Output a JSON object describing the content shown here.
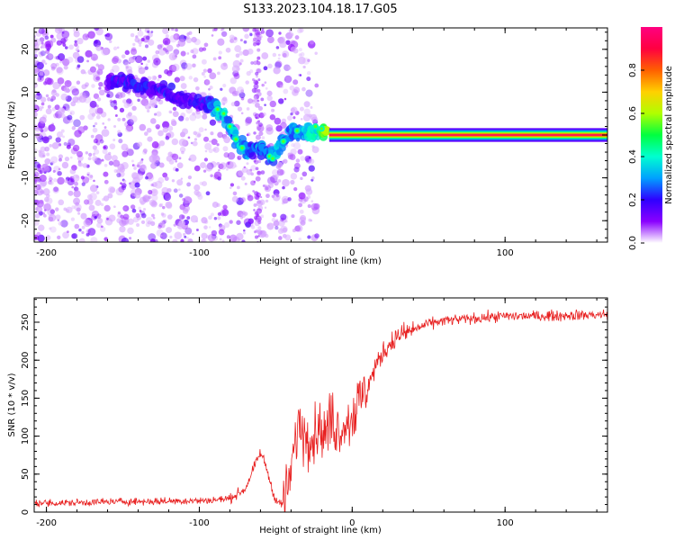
{
  "title": "S133.2023.104.18.17.G05",
  "chart_data": [
    {
      "type": "heatmap",
      "name": "spectrogram",
      "xlabel": "Height of straight line (km)",
      "ylabel": "Frequency (Hz)",
      "xlim": [
        -208,
        167
      ],
      "ylim": [
        -25,
        25
      ],
      "xticks": [
        -200,
        -100,
        0,
        100
      ],
      "xtick_labels": [
        "-200",
        "-100",
        "0",
        "100"
      ],
      "yticks": [
        -20,
        -10,
        0,
        10,
        20
      ],
      "ytick_labels": [
        "-20",
        "-10",
        "0",
        "10",
        "20"
      ],
      "colorbar": {
        "label": "Normalized spectral amplitude",
        "range": [
          0,
          1
        ],
        "ticks": [
          0.0,
          0.2,
          0.4,
          0.6,
          0.8
        ],
        "tick_labels": [
          "0.0",
          "0.2",
          "0.4",
          "0.6",
          "0.8"
        ],
        "colormap": [
          "#ffffff",
          "#8a00ff",
          "#2f00ff",
          "#00a0ff",
          "#00ffd0",
          "#00ff40",
          "#b0ff00",
          "#ffd000",
          "#ff6000",
          "#ff0040",
          "#ff0080"
        ]
      },
      "ridge": [
        {
          "x": -160,
          "y": 12,
          "amp": 0.15
        },
        {
          "x": -150,
          "y": 13,
          "amp": 0.18
        },
        {
          "x": -140,
          "y": 11,
          "amp": 0.2
        },
        {
          "x": -130,
          "y": 11,
          "amp": 0.18
        },
        {
          "x": -115,
          "y": 9,
          "amp": 0.15
        },
        {
          "x": -105,
          "y": 8,
          "amp": 0.16
        },
        {
          "x": -95,
          "y": 7,
          "amp": 0.2
        },
        {
          "x": -88,
          "y": 6,
          "amp": 0.35
        },
        {
          "x": -82,
          "y": 4,
          "amp": 0.3
        },
        {
          "x": -78,
          "y": 0,
          "amp": 0.3
        },
        {
          "x": -74,
          "y": -2,
          "amp": 0.35
        },
        {
          "x": -68,
          "y": -4,
          "amp": 0.25
        },
        {
          "x": -60,
          "y": -3,
          "amp": 0.25
        },
        {
          "x": -53,
          "y": -5,
          "amp": 0.3
        },
        {
          "x": -44,
          "y": -1,
          "amp": 0.3
        },
        {
          "x": -38,
          "y": 1,
          "amp": 0.3
        },
        {
          "x": -30,
          "y": 0,
          "amp": 0.35
        },
        {
          "x": -22,
          "y": 1,
          "amp": 0.4
        },
        {
          "x": -15,
          "y": 0,
          "amp": 0.7
        },
        {
          "x": 0,
          "y": 0,
          "amp": 0.95
        },
        {
          "x": 50,
          "y": 0,
          "amp": 0.97
        },
        {
          "x": 100,
          "y": 0,
          "amp": 0.98
        },
        {
          "x": 165,
          "y": 0,
          "amp": 0.98
        }
      ]
    },
    {
      "type": "line",
      "name": "snr",
      "xlabel": "Height of straight line (km)",
      "ylabel": "SNR (10 * v/v)",
      "xlim": [
        -208,
        167
      ],
      "ylim": [
        0,
        282
      ],
      "xticks": [
        -200,
        -100,
        0,
        100
      ],
      "xtick_labels": [
        "-200",
        "-100",
        "0",
        "100"
      ],
      "yticks": [
        0,
        50,
        100,
        150,
        200,
        250
      ],
      "ytick_labels": [
        "0",
        "50",
        "100",
        "150",
        "200",
        "250"
      ],
      "color": "#e82020",
      "series": [
        {
          "name": "SNR",
          "x": [
            -208,
            -190,
            -170,
            -150,
            -130,
            -110,
            -95,
            -80,
            -70,
            -64,
            -60,
            -57,
            -53,
            -50,
            -46,
            -42,
            -38,
            -35,
            -32,
            -29,
            -26,
            -22,
            -18,
            -14,
            -10,
            -6,
            -2,
            2,
            6,
            10,
            15,
            20,
            25,
            30,
            40,
            50,
            60,
            80,
            100,
            120,
            140,
            167
          ],
          "values": [
            12,
            12,
            13,
            14,
            14,
            15,
            15,
            18,
            30,
            60,
            78,
            65,
            35,
            15,
            10,
            30,
            80,
            120,
            105,
            110,
            95,
            115,
            100,
            125,
            110,
            115,
            120,
            135,
            150,
            165,
            190,
            210,
            222,
            232,
            240,
            248,
            252,
            255,
            258,
            258,
            259,
            260
          ]
        }
      ]
    }
  ]
}
